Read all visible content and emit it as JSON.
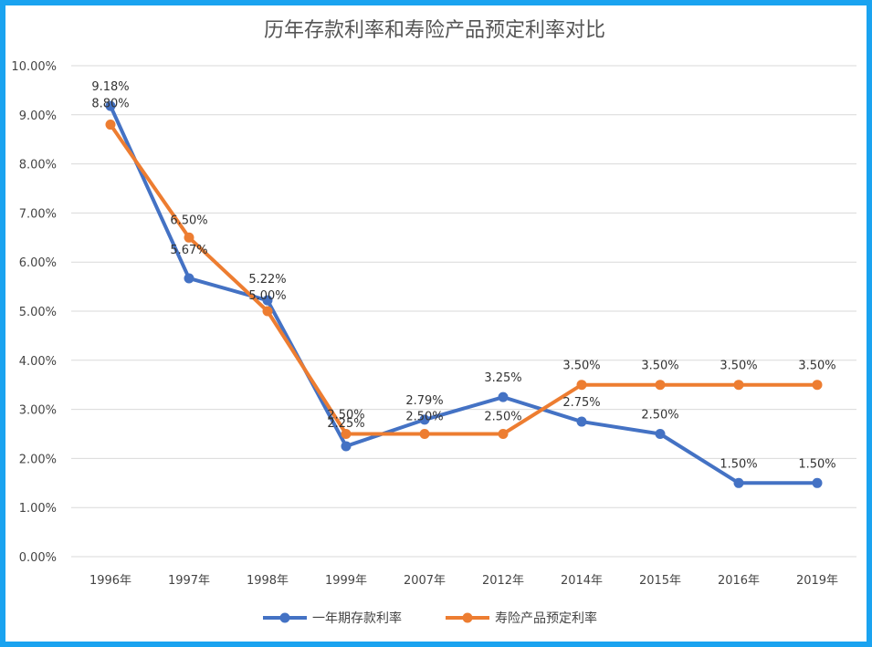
{
  "chart_data": {
    "type": "line",
    "title": "历年存款利率和寿险产品预定利率对比",
    "categories": [
      "1996年",
      "1997年",
      "1998年",
      "1999年",
      "2007年",
      "2012年",
      "2014年",
      "2015年",
      "2016年",
      "2019年"
    ],
    "ylim": [
      0,
      10
    ],
    "yticks": [
      "0.00%",
      "1.00%",
      "2.00%",
      "3.00%",
      "4.00%",
      "5.00%",
      "6.00%",
      "7.00%",
      "8.00%",
      "9.00%",
      "10.00%"
    ],
    "grid": true,
    "legend_position": "bottom",
    "series": [
      {
        "name": "一年期存款利率",
        "color": "#4472c4",
        "values": [
          9.18,
          5.67,
          5.22,
          2.25,
          2.79,
          3.25,
          2.75,
          2.5,
          1.5,
          1.5
        ],
        "labels": [
          "9.18%",
          "5.67%",
          "5.22%",
          "2.25%",
          "2.79%",
          "3.25%",
          "2.75%",
          "2.50%",
          "1.50%",
          "1.50%"
        ]
      },
      {
        "name": "寿险产品预定利率",
        "color": "#ed7d31",
        "values": [
          8.8,
          6.5,
          5.0,
          2.5,
          2.5,
          2.5,
          3.5,
          3.5,
          3.5,
          3.5
        ],
        "labels": [
          "8.80%",
          "6.50%",
          "5.00%",
          "2.50%",
          "2.50%",
          "2.50%",
          "3.50%",
          "3.50%",
          "3.50%",
          "3.50%"
        ]
      }
    ]
  }
}
